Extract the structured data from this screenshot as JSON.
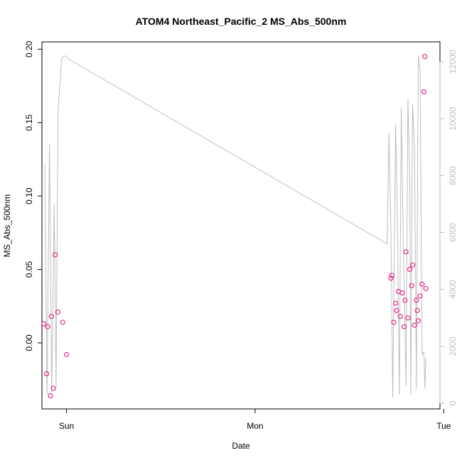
{
  "chart_data": {
    "type": "scatter",
    "title": "ATOM4 Northeast_Pacific_2 MS_Abs_500nm",
    "xlabel": "Date",
    "ylabel": "MS_Abs_500nm",
    "x_unit": "days",
    "xlim": [
      -0.13,
      1.98
    ],
    "ylim": [
      -0.045,
      0.205
    ],
    "x_ticks": [
      {
        "value": 0,
        "label": "Sun"
      },
      {
        "value": 1,
        "label": "Mon"
      },
      {
        "value": 2,
        "label": "Tue"
      }
    ],
    "y_ticks": [
      {
        "value": 0,
        "label": "0.00"
      },
      {
        "value": 0.05,
        "label": "0.05"
      },
      {
        "value": 0.1,
        "label": "0.10"
      },
      {
        "value": 0.15,
        "label": "0.15"
      },
      {
        "value": 0.2,
        "label": "0.20"
      }
    ],
    "y2lim": [
      -200,
      12700
    ],
    "y2_ticks": [
      {
        "value": 0,
        "label": "0"
      },
      {
        "value": 2000,
        "label": "2000"
      },
      {
        "value": 4000,
        "label": "4000"
      },
      {
        "value": 6000,
        "label": "6000"
      },
      {
        "value": 8000,
        "label": "8000"
      },
      {
        "value": 10000,
        "label": "10000"
      },
      {
        "value": 12000,
        "label": "12000"
      }
    ],
    "grid": false,
    "series": [
      {
        "kind": "points",
        "axis": "left",
        "color": "#e7298a",
        "marker": "open-circle",
        "x": [
          -0.12,
          -0.105,
          -0.1,
          -0.085,
          -0.08,
          -0.07,
          -0.06,
          -0.045,
          -0.02,
          0,
          1.72,
          1.725,
          1.735,
          1.745,
          1.75,
          1.76,
          1.77,
          1.78,
          1.79,
          1.795,
          1.8,
          1.81,
          1.82,
          1.83,
          1.835,
          1.845,
          1.855,
          1.86,
          1.865,
          1.875,
          1.885,
          1.895,
          1.9,
          1.905
        ],
        "y": [
          0.013,
          -0.021,
          0.011,
          -0.036,
          0.018,
          -0.031,
          0.06,
          0.021,
          0.014,
          -0.008,
          0.044,
          0.046,
          0.014,
          0.027,
          0.022,
          0.035,
          0.018,
          0.034,
          0.011,
          0.029,
          0.062,
          0.017,
          0.05,
          0.039,
          0.053,
          0.012,
          0.029,
          0.022,
          0.015,
          0.032,
          0.04,
          0.171,
          0.195,
          0.037
        ]
      },
      {
        "kind": "line",
        "axis": "right",
        "color": "#bebebe",
        "x": [
          -0.115,
          -0.103,
          -0.09,
          -0.078,
          -0.065,
          -0.055,
          -0.045,
          -0.035,
          -0.025,
          -0.015,
          -0.005,
          0.01,
          1.7,
          1.71,
          1.72,
          1.73,
          1.745,
          1.755,
          1.765,
          1.775,
          1.785,
          1.8,
          1.81,
          1.82,
          1.825,
          1.835,
          1.845,
          1.855,
          1.865,
          1.875,
          1.885,
          1.895,
          1.9,
          1.905
        ],
        "y": [
          8400,
          300,
          9100,
          400,
          7000,
          500,
          10200,
          11200,
          12100,
          12200,
          12200,
          12100,
          5600,
          9500,
          6000,
          200,
          9800,
          6000,
          300,
          10400,
          6000,
          600,
          10700,
          8000,
          300,
          10500,
          9000,
          500,
          12200,
          11700,
          1700,
          1800,
          500,
          1600
        ]
      }
    ]
  }
}
